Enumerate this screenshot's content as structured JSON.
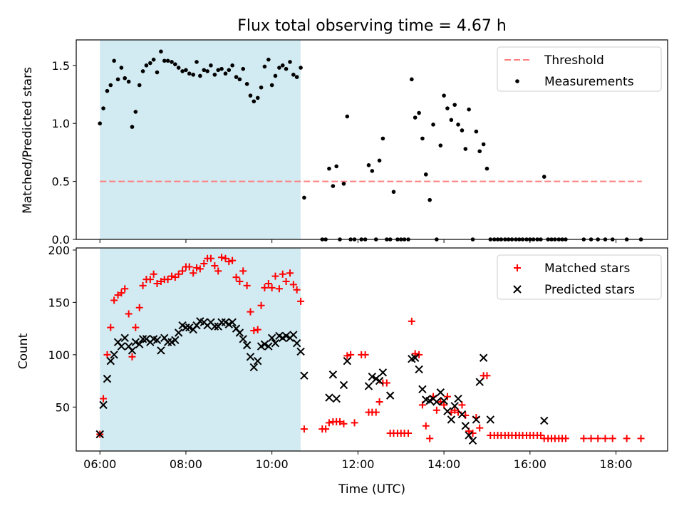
{
  "figure": {
    "title": "Flux total observing time = 4.67 h",
    "xlabel": "Time (UTC)",
    "x_ticks": [
      "06:00",
      "08:00",
      "10:00",
      "12:00",
      "14:00",
      "16:00",
      "18:00"
    ],
    "shaded_span": {
      "x_start": "06:00",
      "x_end": "10:40",
      "color": "#add8e6"
    }
  },
  "chart_data": [
    {
      "type": "scatter",
      "ylabel": "Matched/Predicted stars",
      "xlim_hours": [
        5.45,
        19.2
      ],
      "ylim": [
        0,
        1.72
      ],
      "y_ticks": [
        "0.0",
        "0.5",
        "1.0",
        "1.5"
      ],
      "legend_position": "top-right",
      "threshold": {
        "name": "Threshold",
        "value": 0.5,
        "x_range_hours": [
          6.0,
          18.6
        ],
        "color": "#ff7f7f",
        "style": "dashed"
      },
      "series": [
        {
          "name": "Measurements",
          "color": "#000000",
          "marker": "dot",
          "x_hours": [
            6.0,
            6.08,
            6.17,
            6.25,
            6.33,
            6.42,
            6.5,
            6.58,
            6.67,
            6.75,
            6.83,
            6.92,
            7.0,
            7.08,
            7.17,
            7.25,
            7.33,
            7.42,
            7.5,
            7.58,
            7.67,
            7.75,
            7.83,
            7.92,
            8.0,
            8.08,
            8.17,
            8.25,
            8.33,
            8.42,
            8.5,
            8.58,
            8.67,
            8.75,
            8.83,
            8.92,
            9.0,
            9.08,
            9.17,
            9.25,
            9.33,
            9.42,
            9.5,
            9.58,
            9.67,
            9.75,
            9.83,
            9.92,
            10.0,
            10.08,
            10.17,
            10.25,
            10.33,
            10.42,
            10.5,
            10.58,
            10.67,
            10.75,
            11.17,
            11.25,
            11.33,
            11.42,
            11.5,
            11.58,
            11.67,
            11.75,
            11.83,
            11.92,
            12.08,
            12.17,
            12.25,
            12.33,
            12.42,
            12.5,
            12.58,
            12.67,
            12.75,
            12.83,
            12.92,
            13.0,
            13.08,
            13.17,
            13.25,
            13.33,
            13.42,
            13.5,
            13.58,
            13.67,
            13.75,
            13.83,
            13.92,
            14.0,
            14.08,
            14.17,
            14.25,
            14.33,
            14.42,
            14.5,
            14.58,
            14.67,
            14.75,
            14.83,
            14.92,
            15.0,
            15.08,
            15.17,
            15.25,
            15.33,
            15.42,
            15.5,
            15.58,
            15.67,
            15.75,
            15.83,
            15.92,
            16.0,
            16.08,
            16.17,
            16.25,
            16.33,
            16.42,
            16.5,
            16.58,
            16.67,
            16.75,
            16.83,
            17.25,
            17.42,
            17.58,
            17.75,
            17.92,
            18.25,
            18.58
          ],
          "y": [
            1.0,
            1.13,
            1.28,
            1.33,
            1.54,
            1.38,
            1.48,
            1.39,
            1.36,
            0.97,
            1.1,
            1.33,
            1.45,
            1.5,
            1.52,
            1.55,
            1.44,
            1.62,
            1.54,
            1.54,
            1.53,
            1.51,
            1.48,
            1.45,
            1.46,
            1.43,
            1.42,
            1.53,
            1.41,
            1.46,
            1.45,
            1.5,
            1.42,
            1.46,
            1.47,
            1.43,
            1.46,
            1.5,
            1.4,
            1.38,
            1.47,
            1.34,
            1.24,
            1.19,
            1.22,
            1.31,
            1.49,
            1.55,
            1.33,
            1.41,
            1.48,
            1.5,
            1.47,
            1.53,
            1.42,
            1.4,
            1.48,
            0.36,
            0.0,
            0.0,
            0.61,
            0.46,
            0.63,
            0.0,
            0.48,
            1.06,
            0.0,
            0.0,
            0.0,
            0.0,
            0.64,
            0.59,
            0.0,
            0.68,
            0.87,
            0.0,
            0.0,
            0.41,
            0.0,
            0.0,
            0.0,
            0.0,
            1.38,
            1.05,
            1.09,
            0.87,
            0.56,
            0.34,
            0.99,
            0.0,
            0.81,
            1.24,
            1.13,
            1.03,
            1.16,
            0.99,
            0.94,
            0.78,
            1.12,
            0.0,
            0.93,
            0.76,
            0.82,
            0.61,
            0.0,
            0.0,
            0.0,
            0.0,
            0.0,
            0.0,
            0.0,
            0.0,
            0.0,
            0.0,
            0.0,
            0.0,
            0.0,
            0.0,
            0.0,
            0.54,
            0.0,
            0.0,
            0.0,
            0.0,
            0.0,
            0.0,
            0.0,
            0.0,
            0.0,
            0.0,
            0.0,
            0.0,
            0.0
          ]
        }
      ]
    },
    {
      "type": "scatter",
      "ylabel": "Count",
      "xlabel": "Time (UTC)",
      "xlim_hours": [
        5.45,
        19.2
      ],
      "ylim": [
        8,
        202
      ],
      "y_ticks": [
        "50",
        "100",
        "150",
        "200"
      ],
      "y_tick_values": [
        50,
        100,
        150,
        200
      ],
      "legend_position": "top-right",
      "series": [
        {
          "name": "Matched stars",
          "color": "#ff0000",
          "marker": "plus",
          "x_hours": [
            6.0,
            6.08,
            6.17,
            6.25,
            6.33,
            6.42,
            6.5,
            6.58,
            6.67,
            6.75,
            6.83,
            6.92,
            7.0,
            7.08,
            7.17,
            7.25,
            7.33,
            7.42,
            7.5,
            7.58,
            7.67,
            7.75,
            7.83,
            7.92,
            8.0,
            8.08,
            8.17,
            8.25,
            8.33,
            8.42,
            8.5,
            8.58,
            8.67,
            8.75,
            8.83,
            8.92,
            9.0,
            9.08,
            9.17,
            9.25,
            9.33,
            9.42,
            9.5,
            9.58,
            9.67,
            9.75,
            9.83,
            9.92,
            10.0,
            10.08,
            10.17,
            10.25,
            10.33,
            10.42,
            10.5,
            10.58,
            10.67,
            10.75,
            11.17,
            11.25,
            11.33,
            11.42,
            11.5,
            11.58,
            11.67,
            11.75,
            11.83,
            11.92,
            12.08,
            12.17,
            12.25,
            12.33,
            12.42,
            12.5,
            12.58,
            12.67,
            12.75,
            12.83,
            12.92,
            13.0,
            13.08,
            13.17,
            13.25,
            13.33,
            13.42,
            13.5,
            13.58,
            13.67,
            13.75,
            13.83,
            13.92,
            14.0,
            14.08,
            14.17,
            14.25,
            14.33,
            14.42,
            14.5,
            14.58,
            14.67,
            14.75,
            14.83,
            14.92,
            15.0,
            15.08,
            15.17,
            15.25,
            15.33,
            15.42,
            15.5,
            15.58,
            15.67,
            15.75,
            15.83,
            15.92,
            16.0,
            16.08,
            16.17,
            16.25,
            16.33,
            16.42,
            16.5,
            16.58,
            16.67,
            16.75,
            16.83,
            17.25,
            17.42,
            17.58,
            17.75,
            17.92,
            18.25,
            18.58
          ],
          "y": [
            24,
            58,
            100,
            126,
            152,
            157,
            159,
            163,
            139,
            98,
            126,
            145,
            166,
            172,
            172,
            177,
            168,
            170,
            172,
            172,
            175,
            174,
            177,
            180,
            184,
            184,
            178,
            183,
            182,
            187,
            192,
            192,
            185,
            180,
            193,
            192,
            189,
            190,
            174,
            170,
            180,
            166,
            141,
            123,
            124,
            147,
            164,
            168,
            164,
            175,
            163,
            177,
            170,
            178,
            167,
            162,
            151,
            29,
            29,
            29,
            35,
            36,
            36,
            36,
            34,
            99,
            100,
            35,
            100,
            100,
            45,
            45,
            45,
            55,
            73,
            73,
            25,
            25,
            25,
            25,
            25,
            25,
            132,
            101,
            100,
            52,
            32,
            20,
            60,
            47,
            55,
            52,
            60,
            45,
            47,
            45,
            52,
            42,
            27,
            25,
            40,
            30,
            80,
            80,
            23,
            23,
            23,
            23,
            23,
            23,
            23,
            23,
            23,
            23,
            23,
            23,
            23,
            23,
            23,
            20,
            20,
            20,
            20,
            20,
            20,
            20,
            20,
            20,
            20,
            20,
            20,
            20,
            20
          ]
        },
        {
          "name": "Predicted stars",
          "color": "#000000",
          "marker": "x",
          "x_hours": [
            6.0,
            6.08,
            6.17,
            6.25,
            6.33,
            6.42,
            6.5,
            6.58,
            6.67,
            6.75,
            6.83,
            6.92,
            7.0,
            7.08,
            7.17,
            7.25,
            7.33,
            7.42,
            7.5,
            7.58,
            7.67,
            7.75,
            7.83,
            7.92,
            8.0,
            8.08,
            8.17,
            8.25,
            8.33,
            8.42,
            8.5,
            8.58,
            8.67,
            8.75,
            8.83,
            8.92,
            9.0,
            9.08,
            9.17,
            9.25,
            9.33,
            9.42,
            9.5,
            9.58,
            9.67,
            9.75,
            9.83,
            9.92,
            10.0,
            10.08,
            10.17,
            10.25,
            10.33,
            10.42,
            10.5,
            10.58,
            10.67,
            10.75,
            11.33,
            11.42,
            11.5,
            11.67,
            11.75,
            12.25,
            12.33,
            12.42,
            12.5,
            12.58,
            12.75,
            13.25,
            13.33,
            13.42,
            13.5,
            13.58,
            13.67,
            13.75,
            13.83,
            13.92,
            14.0,
            14.08,
            14.17,
            14.25,
            14.33,
            14.42,
            14.5,
            14.58,
            14.67,
            14.75,
            14.83,
            14.92,
            15.08,
            16.33
          ],
          "y": [
            24,
            52,
            77,
            94,
            100,
            112,
            108,
            116,
            108,
            104,
            112,
            110,
            115,
            115,
            112,
            115,
            114,
            104,
            116,
            112,
            112,
            114,
            121,
            128,
            126,
            126,
            124,
            128,
            132,
            131,
            128,
            131,
            127,
            127,
            131,
            131,
            129,
            131,
            125,
            121,
            115,
            109,
            98,
            88,
            94,
            108,
            110,
            108,
            116,
            111,
            118,
            116,
            118,
            116,
            119,
            111,
            103,
            80,
            59,
            81,
            58,
            71,
            94,
            70,
            79,
            77,
            75,
            83,
            61,
            96,
            97,
            86,
            67,
            57,
            56,
            58,
            55,
            64,
            56,
            46,
            38,
            51,
            58,
            43,
            32,
            23,
            18,
            38,
            74,
            97,
            38,
            37
          ]
        }
      ]
    }
  ]
}
